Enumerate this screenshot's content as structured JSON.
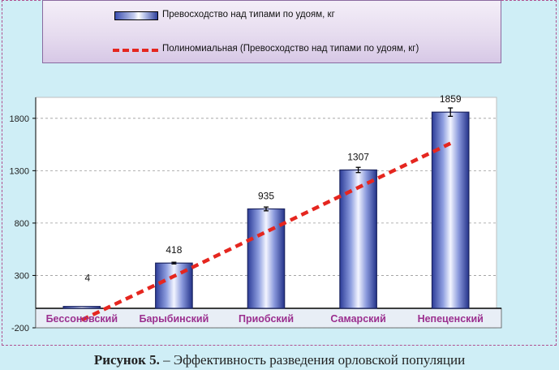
{
  "chart_data": {
    "type": "bar",
    "categories": [
      "Бессоновский",
      "Барыбинский",
      "Приобский",
      "Самарский",
      "Непеценский"
    ],
    "series": [
      {
        "name": "Превосходство над типами по удоям, кг",
        "values": [
          4,
          418,
          935,
          1307,
          1859
        ],
        "labels": [
          "4",
          "418",
          "935",
          "1307",
          "1859"
        ],
        "color": "#3b4fb0"
      }
    ],
    "trendline": {
      "name": "Полиномиальная  (Превосходство над типами по удоям, кг)",
      "values": [
        -125,
        293,
        716,
        1139,
        1561
      ],
      "color": "#e5261f"
    },
    "error_bar_half": [
      0,
      8,
      18,
      25,
      40
    ],
    "yticks": [
      "1800",
      "1300",
      "800",
      "300",
      "-200"
    ],
    "ylim": [
      -200,
      2000
    ],
    "grid": true,
    "colors": {
      "plot_bg": "#ffffff",
      "page_bg": "#cfeef6",
      "category_label": "#9b2f8f"
    }
  },
  "caption": {
    "number": "Рисунок 5.",
    "text": "– Эффективность разведения орловской популяции"
  }
}
